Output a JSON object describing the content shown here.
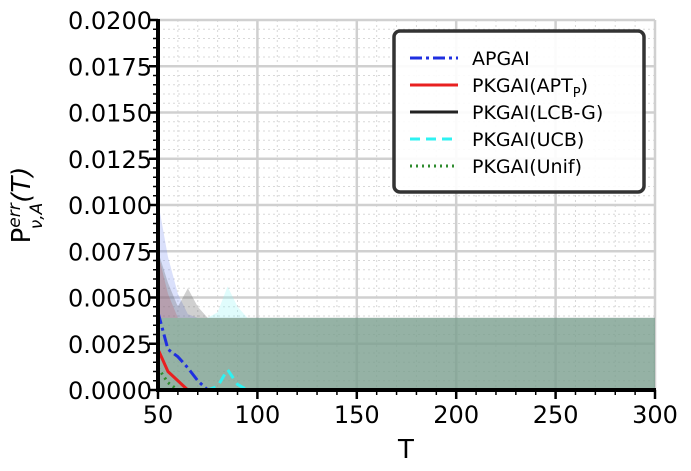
{
  "chart_data": {
    "type": "line",
    "title": "",
    "xlabel": "T",
    "ylabel": "P",
    "ylabel_sup": "err",
    "ylabel_sub": "ν,A",
    "ylabel_arg": "(T)",
    "xlim": [
      50,
      300
    ],
    "ylim": [
      0,
      0.02
    ],
    "x_ticks": [
      50,
      100,
      150,
      200,
      250,
      300
    ],
    "x_tick_labels": [
      "50",
      "100",
      "150",
      "200",
      "250",
      "300"
    ],
    "y_ticks": [
      0,
      0.0025,
      0.005,
      0.0075,
      0.01,
      0.0125,
      0.015,
      0.0175,
      0.02
    ],
    "y_tick_labels": [
      "0.0000",
      "0.0025",
      "0.0050",
      "0.0075",
      "0.0100",
      "0.0125",
      "0.0150",
      "0.0175",
      "0.0200"
    ],
    "grid": true,
    "legend_position": "top-right",
    "x": [
      50,
      55,
      60,
      65,
      70,
      75,
      80,
      85,
      90,
      95,
      100,
      150,
      200,
      250,
      300
    ],
    "series": [
      {
        "name": "APGAI",
        "name_sub": "",
        "name_suffix": "",
        "color": "#1f2fe0",
        "dash": "12,4,3,4",
        "values": [
          0.0042,
          0.0022,
          0.0018,
          0.0012,
          0.0005,
          0,
          0,
          0,
          0,
          0,
          0,
          0,
          0,
          0,
          0
        ],
        "band_upper": [
          0.0102,
          0.0072,
          0.0052,
          0.0041,
          0.0039,
          0.0039,
          0.0039,
          0.0039,
          0.0039,
          0.0039,
          0.0039,
          0.0039,
          0.0039,
          0.0039,
          0.0039
        ],
        "band_color": "#7b8ff0"
      },
      {
        "name": "PKGAI(APT",
        "name_sub": "P",
        "name_suffix": ")",
        "color": "#e82020",
        "dash": "",
        "values": [
          0.0022,
          0.001,
          0.0005,
          0,
          0,
          0,
          0,
          0,
          0,
          0,
          0,
          0,
          0,
          0,
          0
        ],
        "band_upper": [
          0.0074,
          0.0052,
          0.0039,
          0.0039,
          0.0039,
          0.0039,
          0.0039,
          0.0039,
          0.0039,
          0.0039,
          0.0039,
          0.0039,
          0.0039,
          0.0039,
          0.0039
        ],
        "band_color": "#e06060"
      },
      {
        "name": "PKGAI(LCB-G)",
        "name_sub": "",
        "name_suffix": "",
        "color": "#222222",
        "dash": "",
        "values": [
          0,
          0,
          0,
          0,
          0,
          0,
          0,
          0,
          0,
          0,
          0,
          0,
          0,
          0,
          0
        ],
        "band_upper": [
          0.0075,
          0.0058,
          0.0045,
          0.0055,
          0.0045,
          0.0039,
          0.0039,
          0.0039,
          0.0039,
          0.0039,
          0.0039,
          0.0039,
          0.0039,
          0.0039,
          0.0039
        ],
        "band_color": "#555555"
      },
      {
        "name": "PKGAI(UCB)",
        "name_sub": "",
        "name_suffix": "",
        "color": "#2ef2f2",
        "dash": "10,6",
        "values": [
          0,
          0,
          0,
          0,
          0,
          0,
          0.0002,
          0.0011,
          0.0003,
          0,
          0,
          0,
          0,
          0,
          0
        ],
        "band_upper": [
          0.0039,
          0.0039,
          0.0039,
          0.0039,
          0.0039,
          0.0039,
          0.0042,
          0.0056,
          0.0045,
          0.0039,
          0.0039,
          0.0039,
          0.0039,
          0.0039,
          0.0039
        ],
        "band_color": "#8ff5f5"
      },
      {
        "name": "PKGAI(Unif)",
        "name_sub": "",
        "name_suffix": "",
        "color": "#2e8b2e",
        "dash": "2,4",
        "values": [
          0.0012,
          0.0004,
          0,
          0,
          0,
          0,
          0,
          0,
          0,
          0,
          0,
          0,
          0,
          0,
          0
        ],
        "band_upper": [
          0.0039,
          0.0039,
          0.0039,
          0.0039,
          0.0039,
          0.0039,
          0.0039,
          0.0039,
          0.0039,
          0.0039,
          0.0039,
          0.0039,
          0.0039,
          0.0039,
          0.0039
        ],
        "band_color": "#5fa85f"
      }
    ]
  }
}
